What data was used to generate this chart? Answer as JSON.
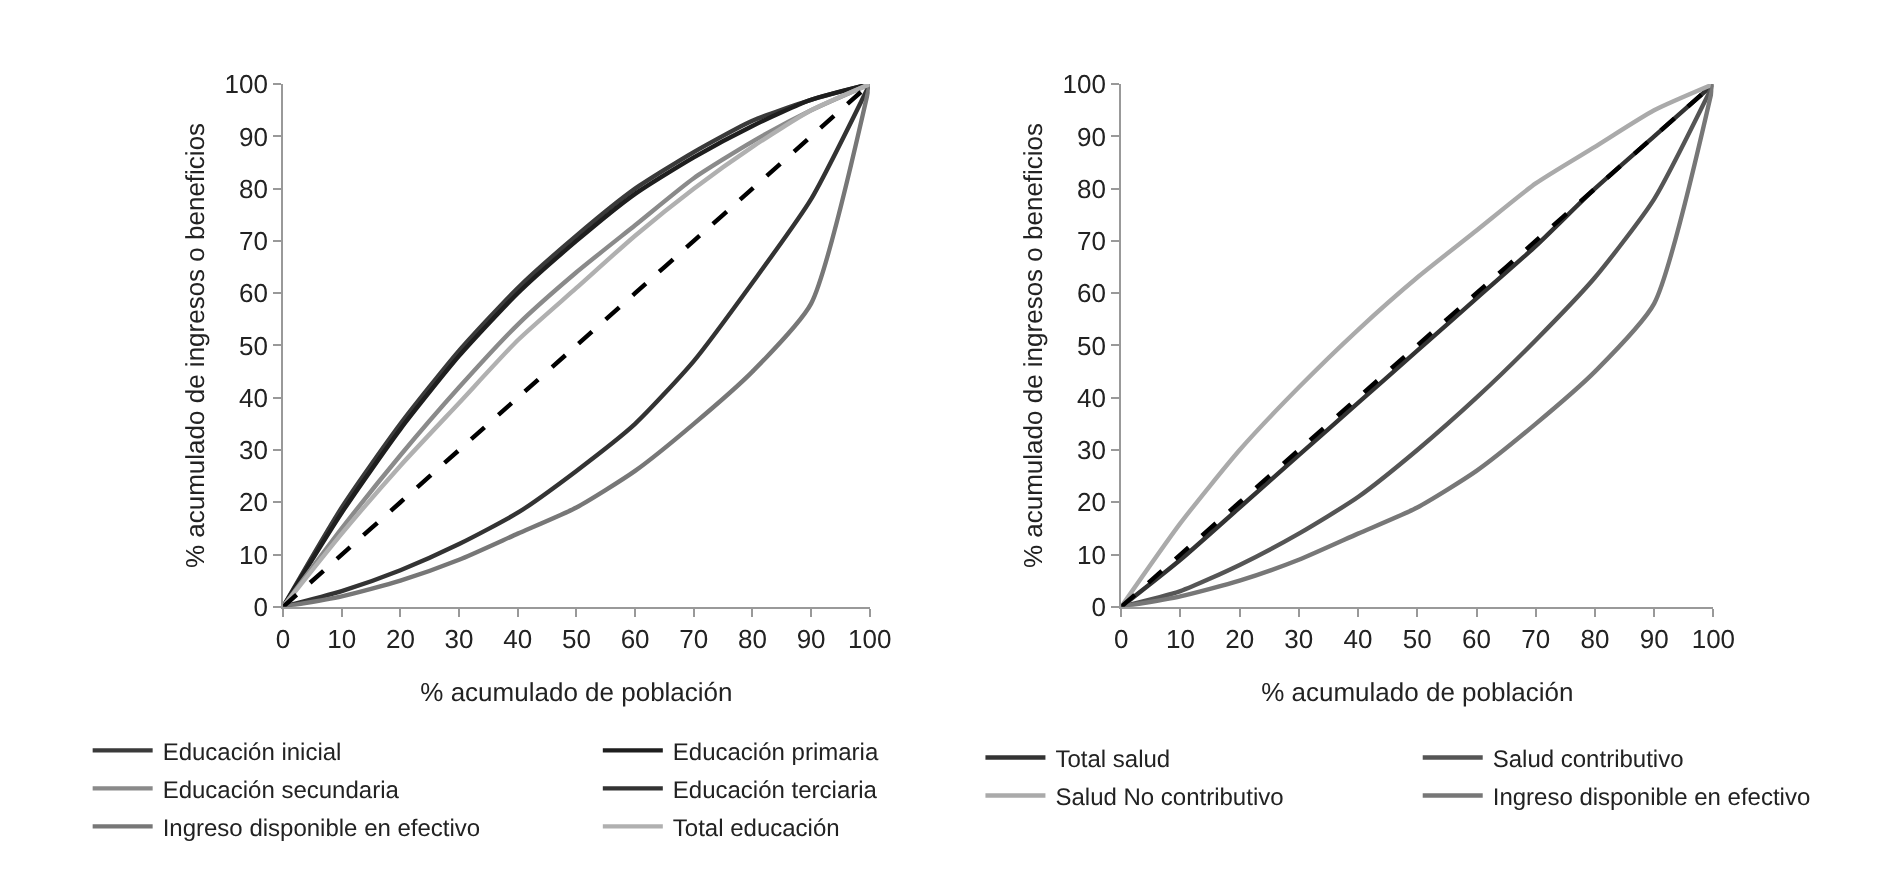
{
  "chart_data": [
    {
      "type": "line",
      "xlabel": "% acumulado de población",
      "ylabel": "% acumulado de ingresos o beneficios",
      "x": [
        0,
        10,
        20,
        30,
        40,
        50,
        60,
        70,
        80,
        90,
        100
      ],
      "xlim": [
        0,
        100
      ],
      "ylim": [
        0,
        100
      ],
      "xticks": [
        0,
        10,
        20,
        30,
        40,
        50,
        60,
        70,
        80,
        90,
        100
      ],
      "yticks": [
        0,
        10,
        20,
        30,
        40,
        50,
        60,
        70,
        80,
        90,
        100
      ],
      "legend": "bottom",
      "series": [
        {
          "name": "Educación inicial",
          "color": "#3a3a3a",
          "values": [
            0,
            19,
            35,
            49,
            61,
            71,
            80,
            87,
            93,
            97,
            100
          ]
        },
        {
          "name": "Educación primaria",
          "color": "#1e1e1e",
          "values": [
            0,
            18,
            34,
            48,
            60,
            70,
            79,
            86,
            92,
            97,
            100
          ]
        },
        {
          "name": "Educación secundaria",
          "color": "#8a8a8a",
          "values": [
            0,
            15,
            29,
            42,
            54,
            64,
            73,
            82,
            89,
            95,
            100
          ]
        },
        {
          "name": "Educación terciaria",
          "color": "#333333",
          "values": [
            0,
            3,
            7,
            12,
            18,
            26,
            35,
            47,
            62,
            78,
            100
          ]
        },
        {
          "name": "Ingreso disponible en efectivo",
          "color": "#777777",
          "values": [
            0,
            2,
            5,
            9,
            14,
            19,
            26,
            35,
            45,
            58,
            100
          ]
        },
        {
          "name": "Total educación",
          "color": "#b0b0b0",
          "values": [
            0,
            14,
            27,
            39,
            51,
            61,
            71,
            80,
            88,
            95,
            100
          ]
        },
        {
          "color": "#000000",
          "line_style": "dashed",
          "values": [
            0,
            10,
            20,
            30,
            40,
            50,
            60,
            70,
            80,
            90,
            100
          ]
        }
      ]
    },
    {
      "type": "line",
      "xlabel": "% acumulado de población",
      "ylabel": "% acumulado de ingresos o beneficios",
      "x": [
        0,
        10,
        20,
        30,
        40,
        50,
        60,
        70,
        80,
        90,
        100
      ],
      "xlim": [
        0,
        100
      ],
      "ylim": [
        0,
        100
      ],
      "xticks": [
        0,
        10,
        20,
        30,
        40,
        50,
        60,
        70,
        80,
        90,
        100
      ],
      "yticks": [
        0,
        10,
        20,
        30,
        40,
        50,
        60,
        70,
        80,
        90,
        100
      ],
      "legend": "bottom",
      "series": [
        {
          "name": "Total salud",
          "color": "#333333",
          "values": [
            0,
            9,
            19,
            29,
            39,
            49,
            59,
            69,
            80,
            90,
            100
          ]
        },
        {
          "name": "Salud contributivo",
          "color": "#555555",
          "values": [
            0,
            3,
            8,
            14,
            21,
            30,
            40,
            51,
            63,
            78,
            100
          ]
        },
        {
          "name": "Salud No contributivo",
          "color": "#aaaaaa",
          "values": [
            0,
            16,
            30,
            42,
            53,
            63,
            72,
            81,
            88,
            95,
            100
          ]
        },
        {
          "name": "Ingreso disponible en efectivo",
          "color": "#777777",
          "values": [
            0,
            2,
            5,
            9,
            14,
            19,
            26,
            35,
            45,
            58,
            100
          ]
        },
        {
          "color": "#000000",
          "line_style": "dashed",
          "values": [
            0,
            10,
            20,
            30,
            40,
            50,
            60,
            70,
            80,
            90,
            100
          ]
        }
      ]
    }
  ]
}
